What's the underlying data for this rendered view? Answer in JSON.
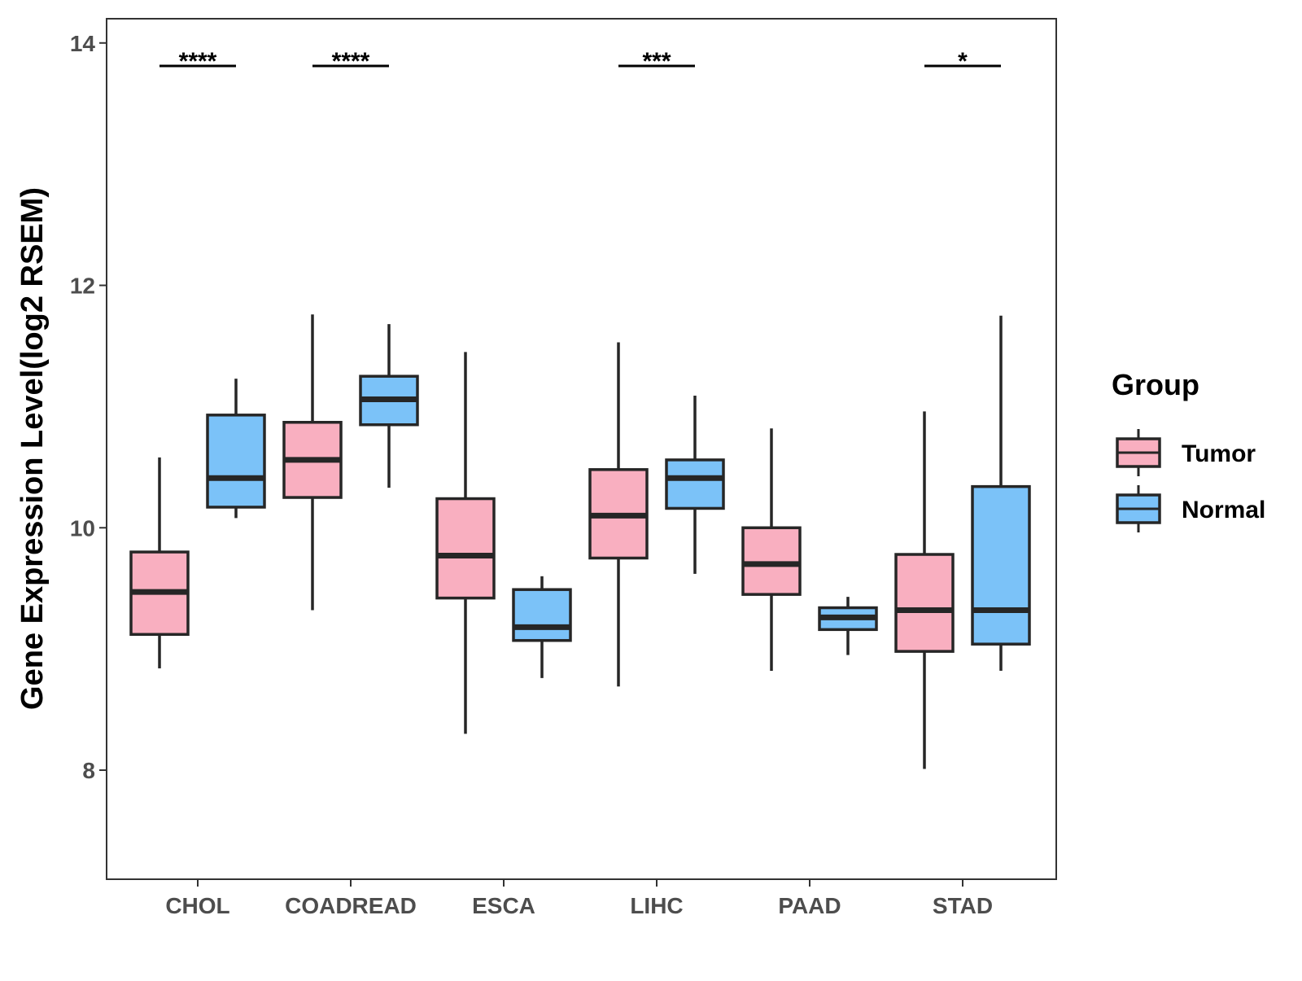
{
  "chart_data": {
    "type": "boxplot",
    "ylabel": "Gene Expression Level(log2 RSEM)",
    "xlabel": "",
    "ylim": [
      7.1,
      14.2
    ],
    "yticks": [
      8,
      10,
      12,
      14
    ],
    "categories": [
      "CHOL",
      "COADREAD",
      "ESCA",
      "LIHC",
      "PAAD",
      "STAD"
    ],
    "series": [
      {
        "name": "Tumor",
        "color": "#F9AFC0",
        "boxes": [
          {
            "min": 8.84,
            "q1": 9.12,
            "median": 9.47,
            "q3": 9.8,
            "max": 10.58
          },
          {
            "min": 9.32,
            "q1": 10.25,
            "median": 10.56,
            "q3": 10.87,
            "max": 11.76
          },
          {
            "min": 8.3,
            "q1": 9.42,
            "median": 9.77,
            "q3": 10.24,
            "max": 11.45
          },
          {
            "min": 8.69,
            "q1": 9.75,
            "median": 10.1,
            "q3": 10.48,
            "max": 11.53
          },
          {
            "min": 8.82,
            "q1": 9.45,
            "median": 9.7,
            "q3": 10.0,
            "max": 10.82
          },
          {
            "min": 8.01,
            "q1": 8.98,
            "median": 9.32,
            "q3": 9.78,
            "max": 10.96
          }
        ]
      },
      {
        "name": "Normal",
        "color": "#7BC2F8",
        "boxes": [
          {
            "min": 10.08,
            "q1": 10.17,
            "median": 10.41,
            "q3": 10.93,
            "max": 11.23
          },
          {
            "min": 10.33,
            "q1": 10.85,
            "median": 11.06,
            "q3": 11.25,
            "max": 11.68
          },
          {
            "min": 8.76,
            "q1": 9.07,
            "median": 9.18,
            "q3": 9.49,
            "max": 9.6
          },
          {
            "min": 9.62,
            "q1": 10.16,
            "median": 10.41,
            "q3": 10.56,
            "max": 11.09
          },
          {
            "min": 8.95,
            "q1": 9.16,
            "median": 9.26,
            "q3": 9.34,
            "max": 9.43
          },
          {
            "min": 8.82,
            "q1": 9.04,
            "median": 9.32,
            "q3": 10.34,
            "max": 11.75
          }
        ]
      }
    ],
    "significance": [
      {
        "category": "CHOL",
        "label": "****",
        "y": 13.81
      },
      {
        "category": "COADREAD",
        "label": "****",
        "y": 13.81
      },
      {
        "category": "LIHC",
        "label": "***",
        "y": 13.81
      },
      {
        "category": "STAD",
        "label": "*",
        "y": 13.81
      }
    ],
    "legend": {
      "title": "Group",
      "position": "right",
      "entries": [
        "Tumor",
        "Normal"
      ]
    },
    "grid": false
  }
}
